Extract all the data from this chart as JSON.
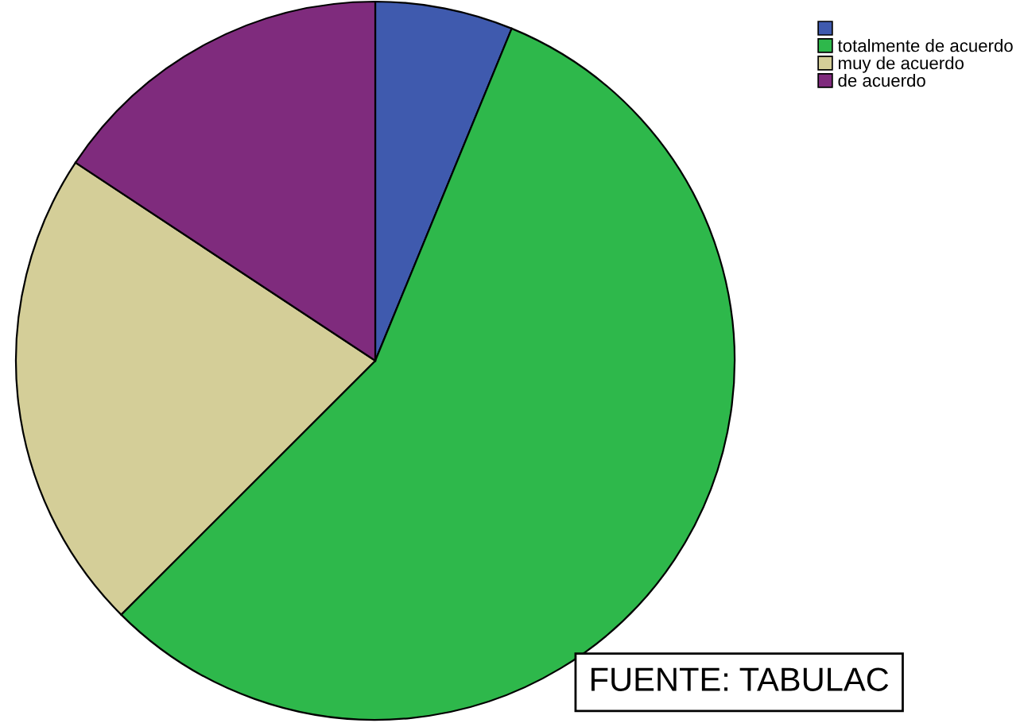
{
  "chart_data": {
    "type": "pie",
    "categories": [
      null,
      "totalmente de acuerdo",
      "muy de acuerdo",
      "de acuerdo"
    ],
    "values": [
      6.2,
      56.3,
      21.8,
      15.7
    ],
    "colors": [
      "#3f5aae",
      "#2eb84b",
      "#d4ce98",
      "#7f2b7d"
    ],
    "legend": "top right",
    "annotations": [
      "FUENTE: TABULAC"
    ]
  }
}
